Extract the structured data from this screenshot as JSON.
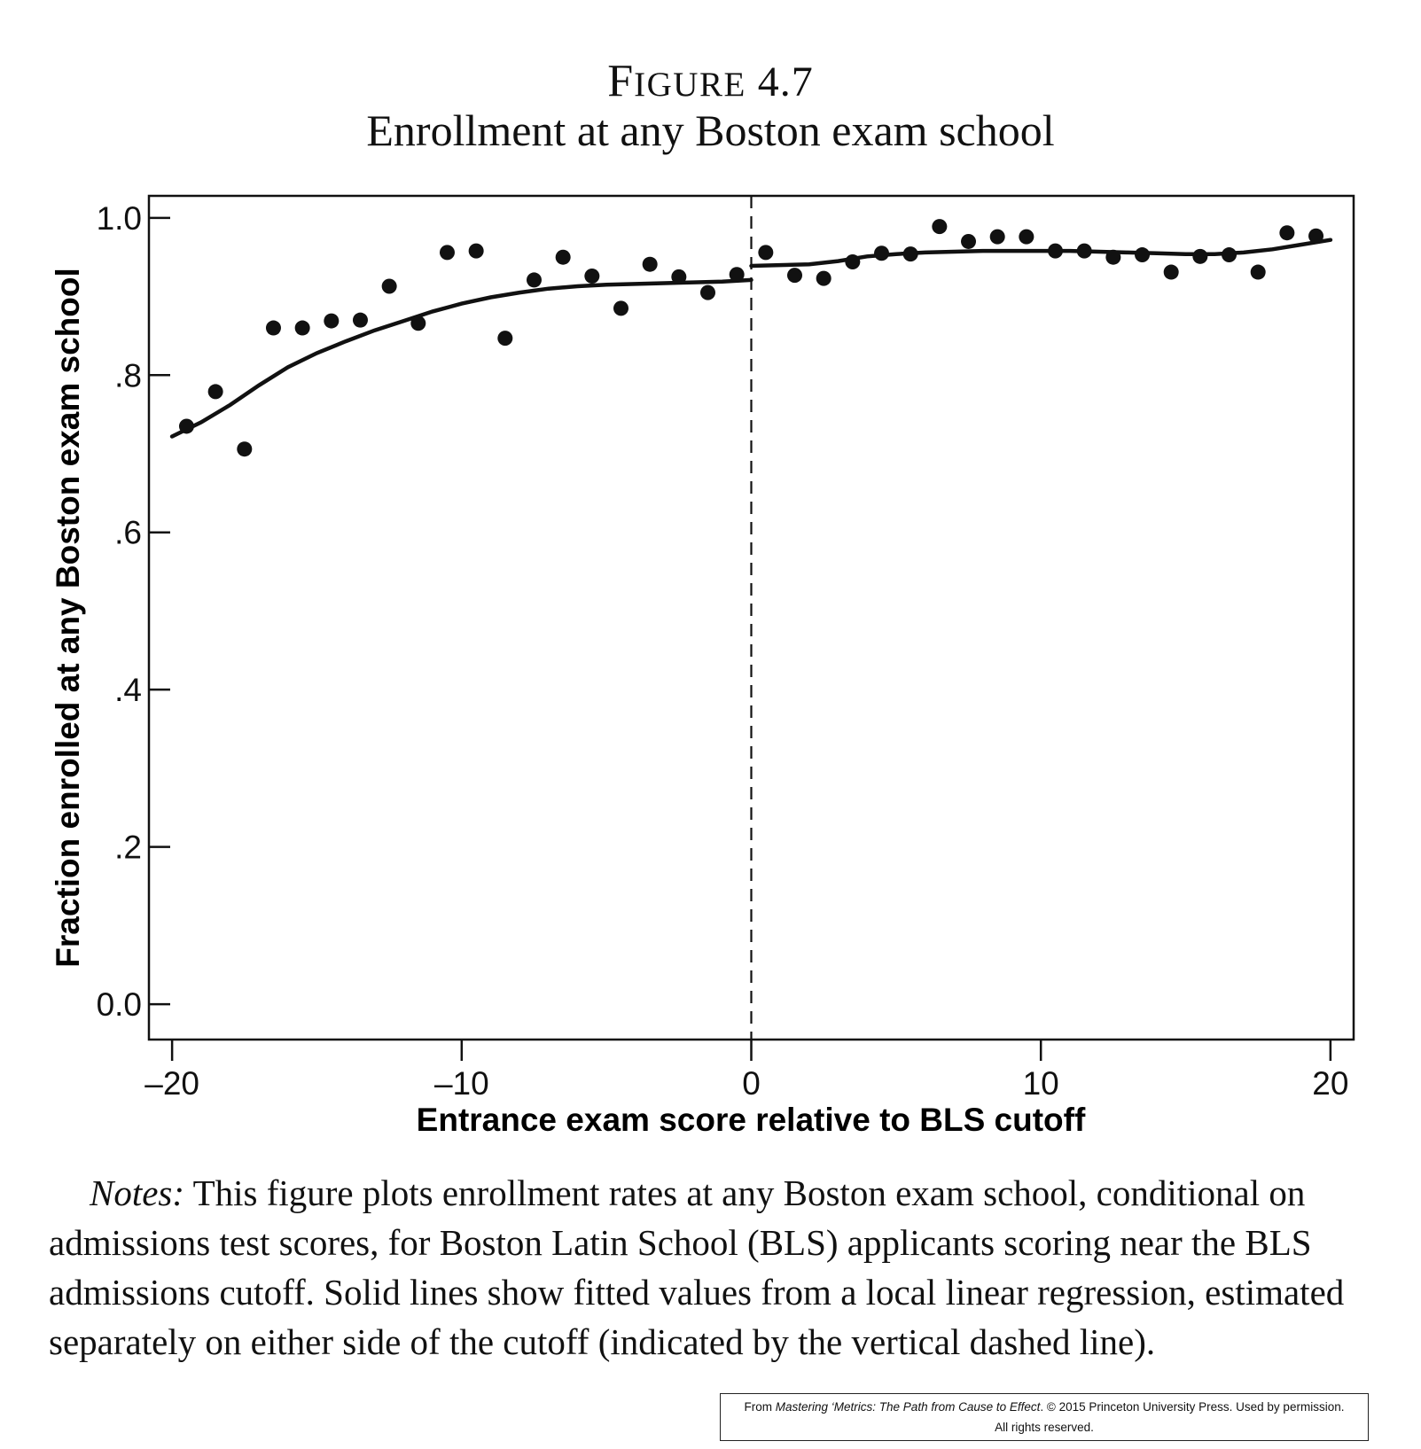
{
  "figure_label": "Figure 4.7",
  "figure_title": "Enrollment at any Boston exam school",
  "chart_data": {
    "type": "scatter",
    "title": "Enrollment at any Boston exam school",
    "xlabel": "Entrance exam score relative to BLS cutoff",
    "ylabel": "Fraction enrolled at any Boston exam school",
    "xlim": [
      -20.8,
      20.8
    ],
    "ylim": [
      -0.045,
      1.028
    ],
    "x_ticks": [
      -20,
      -10,
      0,
      10,
      20
    ],
    "x_tick_labels": [
      "–20",
      "–10",
      "0",
      "10",
      "20"
    ],
    "y_ticks": [
      0,
      0.2,
      0.4,
      0.6,
      0.8,
      1.0
    ],
    "y_tick_labels": [
      "0.0",
      ".2",
      ".4",
      ".6",
      ".8",
      "1.0"
    ],
    "cutoff": 0,
    "grid": false,
    "points": {
      "x": [
        -19.5,
        -18.5,
        -17.5,
        -16.5,
        -15.5,
        -14.5,
        -13.5,
        -12.5,
        -11.5,
        -10.5,
        -9.5,
        -8.5,
        -7.5,
        -6.5,
        -5.5,
        -4.5,
        -3.5,
        -2.5,
        -1.5,
        -0.5,
        0.5,
        1.5,
        2.5,
        3.5,
        4.5,
        5.5,
        6.5,
        7.5,
        8.5,
        9.5,
        10.5,
        11.5,
        12.5,
        13.5,
        14.5,
        15.5,
        16.5,
        17.5,
        18.5,
        19.5
      ],
      "y": [
        0.735,
        0.779,
        0.706,
        0.86,
        0.86,
        0.869,
        0.87,
        0.913,
        0.866,
        0.956,
        0.958,
        0.847,
        0.921,
        0.95,
        0.926,
        0.885,
        0.941,
        0.925,
        0.905,
        0.928,
        0.956,
        0.927,
        0.923,
        0.944,
        0.955,
        0.954,
        0.989,
        0.97,
        0.976,
        0.976,
        0.958,
        0.958,
        0.95,
        0.953,
        0.931,
        0.951,
        0.953,
        0.931,
        0.981,
        0.977
      ]
    },
    "fit_left": {
      "x": [
        -20,
        -19,
        -18,
        -17,
        -16,
        -15,
        -14,
        -13,
        -12,
        -11,
        -10,
        -9,
        -8,
        -7,
        -6,
        -5,
        -4,
        -3,
        -2,
        -1,
        0
      ],
      "y": [
        0.722,
        0.74,
        0.762,
        0.787,
        0.81,
        0.828,
        0.843,
        0.857,
        0.869,
        0.881,
        0.891,
        0.899,
        0.905,
        0.91,
        0.913,
        0.915,
        0.916,
        0.917,
        0.918,
        0.919,
        0.921
      ]
    },
    "fit_right": {
      "x": [
        0,
        1,
        2,
        3,
        4,
        5,
        6,
        7,
        8,
        9,
        10,
        11,
        12,
        13,
        14,
        15,
        16,
        17,
        18,
        19,
        20
      ],
      "y": [
        0.939,
        0.94,
        0.941,
        0.945,
        0.951,
        0.954,
        0.956,
        0.957,
        0.958,
        0.958,
        0.958,
        0.958,
        0.957,
        0.956,
        0.955,
        0.954,
        0.954,
        0.956,
        0.96,
        0.966,
        0.972
      ]
    }
  },
  "notes": {
    "lead": "Notes:",
    "text": "This figure plots enrollment rates at any Boston exam school, conditional on admissions test scores, for Boston Latin School (BLS) applicants scoring near the BLS admissions cutoff. Solid lines show fitted values from a local linear regression, estimated separately on either side of the cutoff (indicated by the vertical dashed line)."
  },
  "credit": {
    "prefix": "From ",
    "book": "Mastering ‘Metrics: The Path from Cause to Effect",
    "suffix": ". © 2015 Princeton University Press. Used by permission.",
    "line2": "All rights reserved."
  }
}
